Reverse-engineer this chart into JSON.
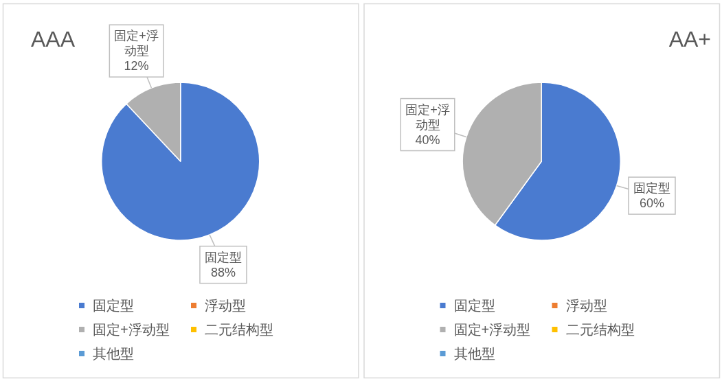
{
  "chart_data": [
    {
      "type": "pie",
      "title": "AAA",
      "categories": [
        "固定型",
        "浮动型",
        "固定+浮动型",
        "二元结构型",
        "其他型"
      ],
      "values": [
        88,
        0,
        12,
        0,
        0
      ],
      "colors": [
        "#4a7bd0",
        "#ed7d31",
        "#b0b0b0",
        "#ffc000",
        "#5b9bd5"
      ],
      "value_labels": [
        "88%",
        null,
        "12%",
        null,
        null
      ],
      "legend": "bottom"
    },
    {
      "type": "pie",
      "title": "AA+",
      "categories": [
        "固定型",
        "浮动型",
        "固定+浮动型",
        "二元结构型",
        "其他型"
      ],
      "values": [
        60,
        0,
        40,
        0,
        0
      ],
      "colors": [
        "#4a7bd0",
        "#ed7d31",
        "#b0b0b0",
        "#ffc000",
        "#5b9bd5"
      ],
      "value_labels": [
        "60%",
        null,
        "40%",
        null,
        null
      ],
      "legend": "bottom"
    }
  ]
}
